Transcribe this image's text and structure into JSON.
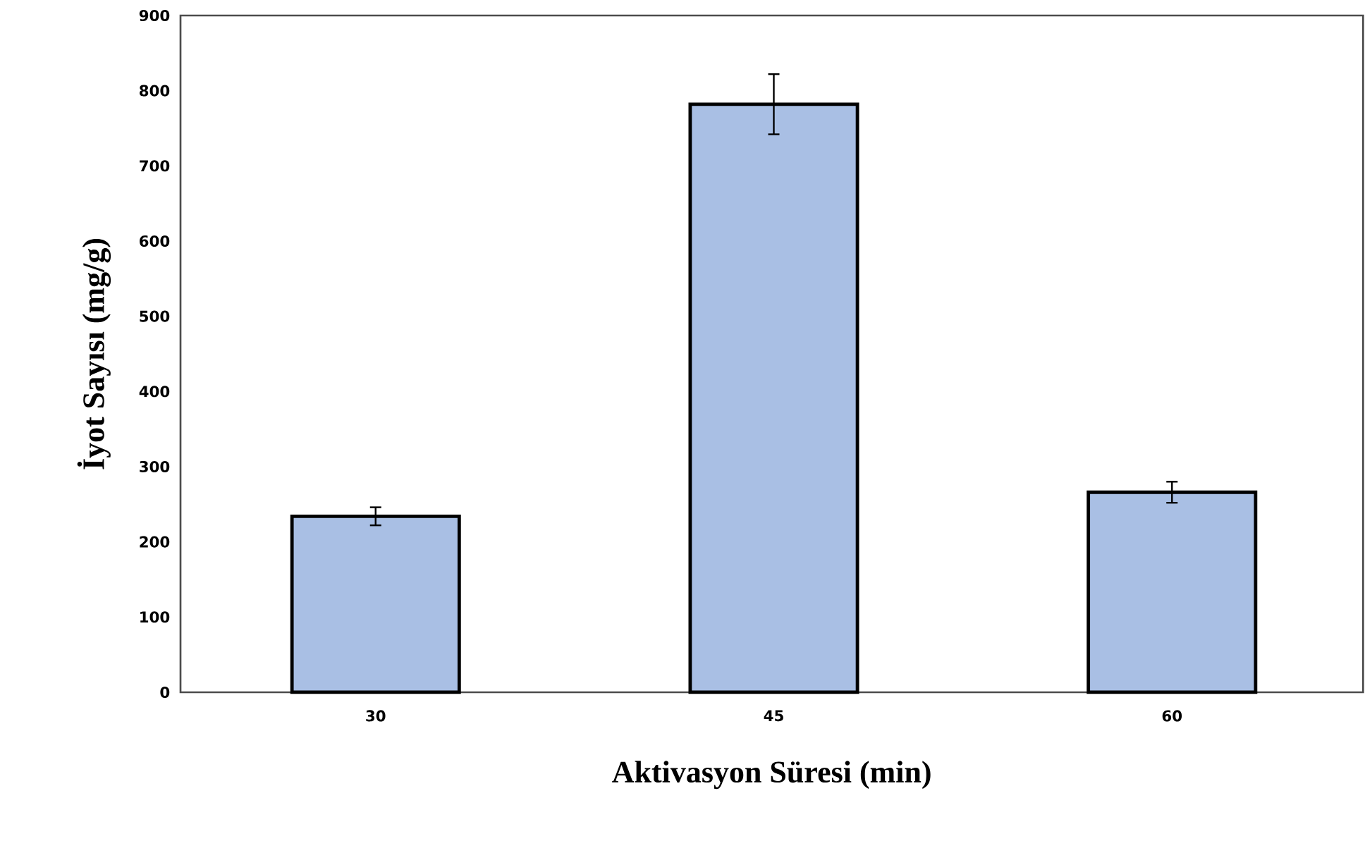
{
  "chart_data": {
    "type": "bar",
    "xlabel": "Aktivasyon Süresi (min)",
    "ylabel": "İyot Sayısı (mg/g)",
    "categories": [
      "30",
      "45",
      "60"
    ],
    "values": [
      234,
      782,
      266
    ],
    "errors": [
      12,
      40,
      14
    ],
    "color": "#a9bfe4",
    "ylim": [
      0,
      900
    ],
    "yticks": [
      0,
      100,
      200,
      300,
      400,
      500,
      600,
      700,
      800,
      900
    ]
  }
}
